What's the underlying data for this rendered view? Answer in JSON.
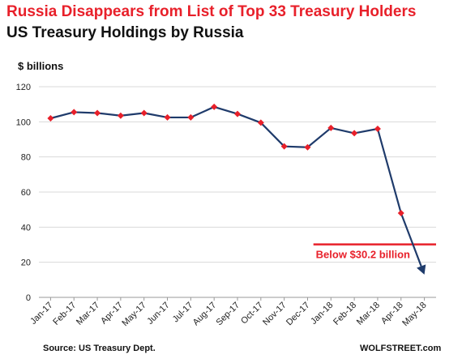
{
  "header": {
    "title": "Russia Disappears from List of Top 33 Treasury Holders",
    "subtitle": "US Treasury Holdings by Russia"
  },
  "footer": {
    "source": "Source: US Treasury Dept.",
    "brand": "WOLFSTREET.com"
  },
  "colors": {
    "line": "#1f3b6b",
    "marker": "#e8202a",
    "threshold": "#e8202a",
    "grid": "#d9d9d9"
  },
  "chart_data": {
    "type": "line",
    "title": "US Treasury Holdings by Russia",
    "ylabel": "$ billions",
    "xlabel": "",
    "ylim": [
      0,
      120
    ],
    "yticks": [
      0,
      20,
      40,
      60,
      80,
      100,
      120
    ],
    "grid": true,
    "categories": [
      "Jan-17",
      "Feb-17",
      "Mar-17",
      "Apr-17",
      "May-17",
      "Jun-17",
      "Jul-17",
      "Aug-17",
      "Sep-17",
      "Oct-17",
      "Nov-17",
      "Dec-17",
      "Jan-18",
      "Feb-18",
      "Mar-18",
      "Apr-18",
      "May-18"
    ],
    "series": [
      {
        "values": [
          102,
          105.5,
          105,
          103.5,
          105,
          102.5,
          102.5,
          108.5,
          104.5,
          99.5,
          86,
          85.5,
          96.5,
          93.5,
          96,
          48,
          13
        ]
      }
    ],
    "annotation": {
      "label": "Below $30.2 billion",
      "value": 30.2,
      "from": "Dec-17",
      "to": "May-18"
    }
  }
}
